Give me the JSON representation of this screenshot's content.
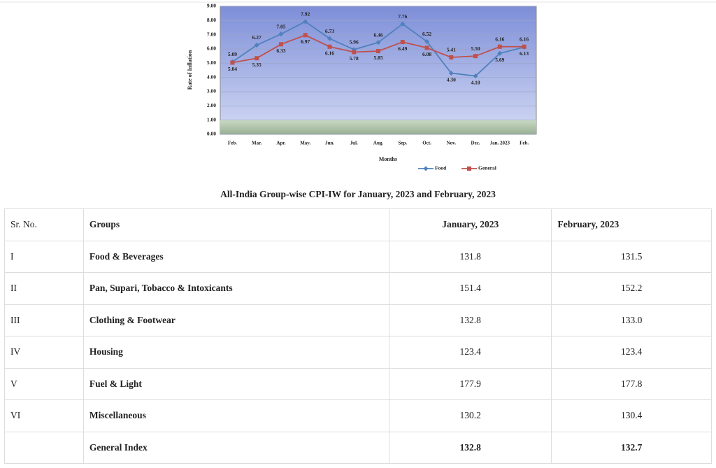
{
  "chart_data": {
    "type": "line",
    "y_label": "Rate of Inflation",
    "x_label": "Months",
    "categories": [
      "Feb.",
      "Mar.",
      "Apr.",
      "May.",
      "Jun.",
      "Jul.",
      "Aug.",
      "Sep.",
      "Oct.",
      "Nov.",
      "Dec.",
      "Jan. 2023",
      "Feb."
    ],
    "series": [
      {
        "name": "Food",
        "color": "#4f81bd",
        "marker": "diamond",
        "values": [
          5.09,
          6.27,
          7.05,
          7.92,
          6.73,
          5.96,
          6.46,
          7.76,
          6.52,
          4.3,
          4.1,
          5.69,
          6.13
        ],
        "value_labels": [
          "5.09",
          "6.27",
          "7.05",
          "7.92",
          "6.73",
          "5.96",
          "6.46",
          "7.76",
          "6.52",
          "4.30",
          "4.10",
          "5.69",
          "6.13"
        ]
      },
      {
        "name": "General",
        "color": "#c0504d",
        "marker": "square",
        "values": [
          5.04,
          5.35,
          6.33,
          6.97,
          6.16,
          5.78,
          5.85,
          6.49,
          6.08,
          5.41,
          5.5,
          6.16,
          6.16
        ],
        "value_labels": [
          "5.04",
          "5.35",
          "6.33",
          "6.97",
          "6.16",
          "5.78",
          "5.85",
          "6.49",
          "6.08",
          "5.41",
          "5.50",
          "6.16",
          "6.16"
        ]
      }
    ],
    "ylim": [
      0,
      9
    ],
    "yticks": [
      {
        "value": 0,
        "label": "0.00"
      },
      {
        "value": 1,
        "label": "1.00"
      },
      {
        "value": 2,
        "label": "2.00"
      },
      {
        "value": 3,
        "label": "3.00"
      },
      {
        "value": 4,
        "label": "4.00"
      },
      {
        "value": 5,
        "label": "5.00"
      },
      {
        "value": 6,
        "label": "6.00"
      },
      {
        "value": 7,
        "label": "7.00"
      },
      {
        "value": 8,
        "label": "8.00"
      },
      {
        "value": 9,
        "label": "9.00"
      }
    ],
    "grid": true,
    "legend": "bottom"
  },
  "table": {
    "title": "All-India Group-wise CPI-IW for January, 2023 and February, 2023",
    "header": [
      "Sr. No.",
      "Groups",
      "January, 2023",
      "February, 2023"
    ],
    "rows": [
      [
        "I",
        "Food & Beverages",
        "131.8",
        "131.5"
      ],
      [
        "II",
        "Pan, Supari, Tobacco & Intoxicants",
        "151.4",
        "152.2"
      ],
      [
        "III",
        "Clothing & Footwear",
        "132.8",
        "133.0"
      ],
      [
        "IV",
        "Housing",
        "123.4",
        "123.4"
      ],
      [
        "V",
        "Fuel & Light",
        "177.9",
        "177.8"
      ],
      [
        "VI",
        "Miscellaneous",
        "130.2",
        "130.4"
      ],
      [
        null,
        "General Index",
        "132.8",
        "132.7"
      ]
    ]
  }
}
